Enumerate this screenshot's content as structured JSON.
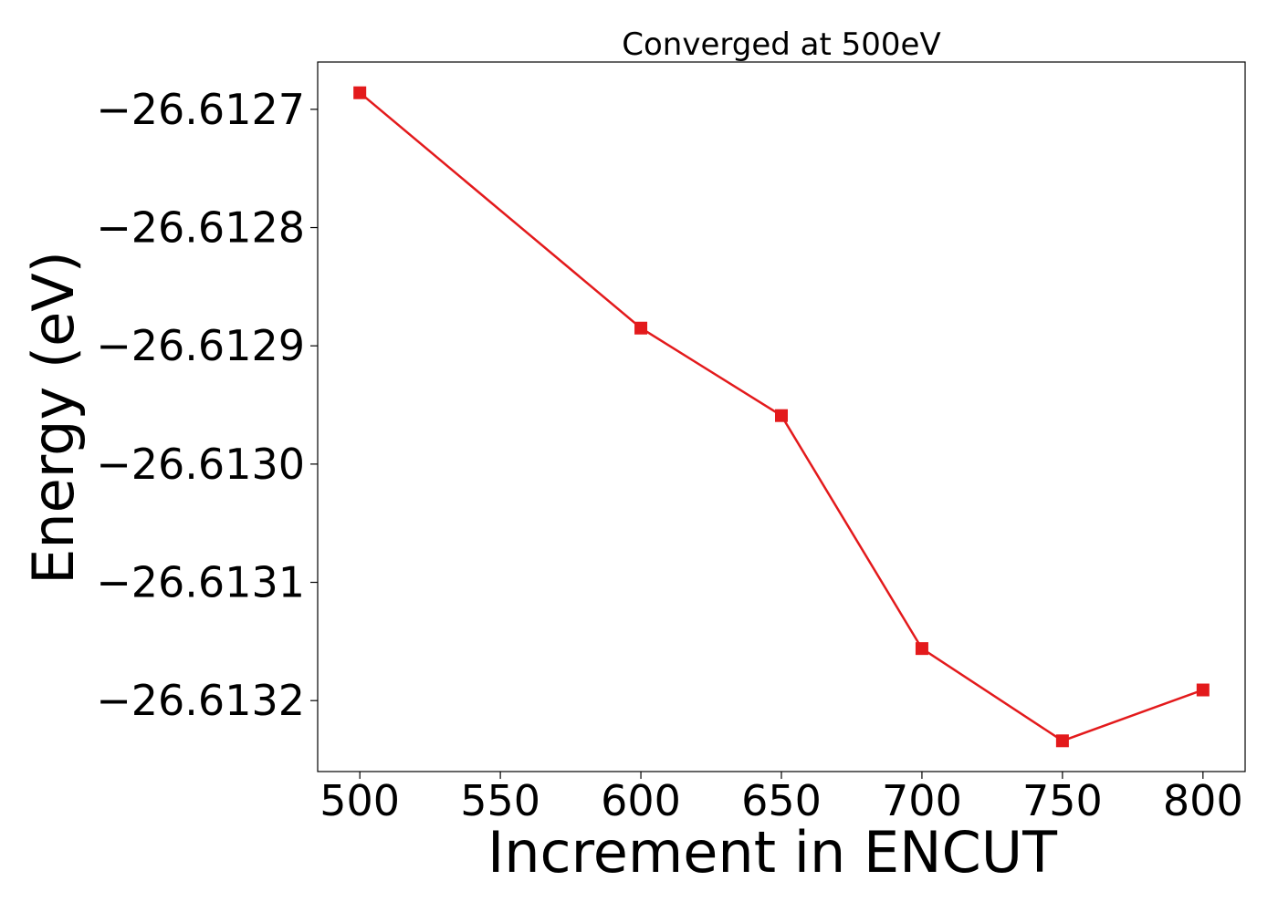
{
  "chart_data": {
    "type": "line",
    "title": "Converged at 500eV",
    "xlabel": "Increment in ENCUT",
    "ylabel": "Energy (eV)",
    "x": [
      500,
      600,
      650,
      700,
      750,
      800
    ],
    "series": [
      {
        "values": [
          -26.612686,
          -26.612885,
          -26.612959,
          -26.613156,
          -26.613234,
          -26.613191
        ],
        "color": "#e31a1c",
        "marker": "square"
      }
    ],
    "xlim": [
      485,
      815
    ],
    "ylim": [
      -26.61326,
      -26.61266
    ],
    "xticks": [
      500,
      550,
      600,
      650,
      700,
      750,
      800
    ],
    "xtick_labels": [
      "500",
      "550",
      "600",
      "650",
      "700",
      "750",
      "800"
    ],
    "yticks": [
      -26.6127,
      -26.6128,
      -26.6129,
      -26.613,
      -26.6131,
      -26.6132
    ],
    "ytick_labels": [
      "−26.6127",
      "−26.6128",
      "−26.6129",
      "−26.6130",
      "−26.6131",
      "−26.6132"
    ],
    "grid": false,
    "legend": "none"
  }
}
